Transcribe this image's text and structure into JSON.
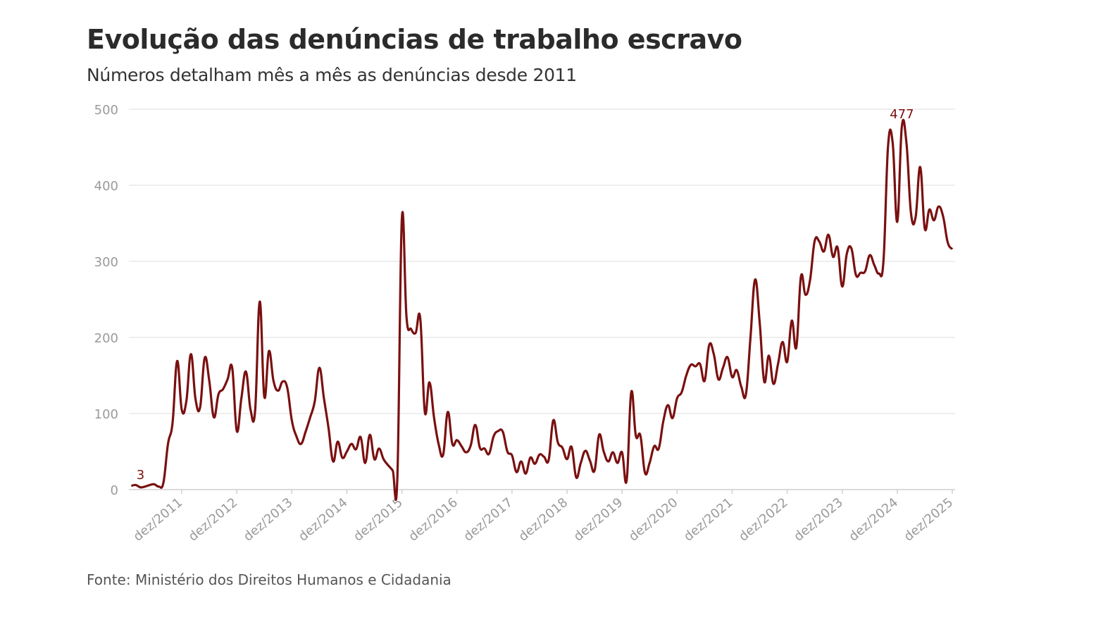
{
  "chart_data": {
    "type": "line",
    "title": "Evolução das denúncias de trabalho escravo",
    "subtitle": "Números detalham mês a mês as denúncias desde 2011",
    "source": "Fonte: Ministério dos Direitos Humanos e Cidadania",
    "xlabel": "",
    "ylabel": "",
    "ylim": [
      0,
      500
    ],
    "yticks": [
      "0",
      "100",
      "200",
      "300",
      "400",
      "500"
    ],
    "xtick_labels": [
      "dez/2011",
      "dez/2012",
      "dez/2013",
      "dez/2014",
      "dez/2015",
      "dez/2016",
      "dez/2017",
      "dez/2018",
      "dez/2019",
      "dez/2020",
      "dez/2021",
      "dez/2022",
      "dez/2023",
      "dez/2024",
      "dez/2025"
    ],
    "grid": true,
    "line_color": "#7a1010",
    "annotations": [
      {
        "x": "mar/2011",
        "label": "3"
      },
      {
        "x": "jan/2025",
        "label": "477"
      }
    ],
    "x": [
      "jan/2011",
      "fev/2011",
      "mar/2011",
      "abr/2011",
      "mai/2011",
      "jun/2011",
      "jul/2011",
      "ago/2011",
      "set/2011",
      "out/2011",
      "nov/2011",
      "dez/2011",
      "jan/2012",
      "fev/2012",
      "mar/2012",
      "abr/2012",
      "mai/2012",
      "jun/2012",
      "jul/2012",
      "ago/2012",
      "set/2012",
      "out/2012",
      "nov/2012",
      "dez/2012",
      "jan/2013",
      "fev/2013",
      "mar/2013",
      "abr/2013",
      "mai/2013",
      "jun/2013",
      "jul/2013",
      "ago/2013",
      "set/2013",
      "out/2013",
      "nov/2013",
      "dez/2013",
      "jan/2014",
      "fev/2014",
      "mar/2014",
      "abr/2014",
      "mai/2014",
      "jun/2014",
      "jul/2014",
      "ago/2014",
      "set/2014",
      "out/2014",
      "nov/2014",
      "dez/2014",
      "jan/2015",
      "fev/2015",
      "mar/2015",
      "abr/2015",
      "mai/2015",
      "jun/2015",
      "jul/2015",
      "ago/2015",
      "set/2015",
      "out/2015",
      "nov/2015",
      "dez/2015",
      "jan/2016",
      "fev/2016",
      "mar/2016",
      "abr/2016",
      "mai/2016",
      "jun/2016",
      "jul/2016",
      "ago/2016",
      "set/2016",
      "out/2016",
      "nov/2016",
      "dez/2016",
      "jan/2017",
      "fev/2017",
      "mar/2017",
      "abr/2017",
      "mai/2017",
      "jun/2017",
      "jul/2017",
      "ago/2017",
      "set/2017",
      "out/2017",
      "nov/2017",
      "dez/2017",
      "jan/2018",
      "fev/2018",
      "mar/2018",
      "abr/2018",
      "mai/2018",
      "jun/2018",
      "jul/2018",
      "ago/2018",
      "set/2018",
      "out/2018",
      "nov/2018",
      "dez/2018",
      "jan/2019",
      "fev/2019",
      "mar/2019",
      "abr/2019",
      "mai/2019",
      "jun/2019",
      "jul/2019",
      "ago/2019",
      "set/2019",
      "out/2019",
      "nov/2019",
      "dez/2019",
      "jan/2020",
      "fev/2020",
      "mar/2020",
      "abr/2020",
      "mai/2020",
      "jun/2020",
      "jul/2020",
      "ago/2020",
      "set/2020",
      "out/2020",
      "nov/2020",
      "dez/2020",
      "jan/2021",
      "fev/2021",
      "mar/2021",
      "abr/2021",
      "mai/2021",
      "jun/2021",
      "jul/2021",
      "ago/2021",
      "set/2021",
      "out/2021",
      "nov/2021",
      "dez/2021",
      "jan/2022",
      "fev/2022",
      "mar/2022",
      "abr/2022",
      "mai/2022",
      "jun/2022",
      "jul/2022",
      "ago/2022",
      "set/2022",
      "out/2022",
      "nov/2022",
      "dez/2022",
      "jan/2023",
      "fev/2023",
      "mar/2023",
      "abr/2023",
      "mai/2023",
      "jun/2023",
      "jul/2023",
      "ago/2023",
      "set/2023",
      "out/2023",
      "nov/2023",
      "dez/2023",
      "jan/2024",
      "fev/2024",
      "mar/2024",
      "abr/2024",
      "mai/2024",
      "jun/2024",
      "jul/2024",
      "ago/2024",
      "set/2024",
      "out/2024",
      "nov/2024",
      "dez/2024",
      "jan/2025",
      "fev/2025",
      "mar/2025",
      "abr/2025",
      "mai/2025",
      "jun/2025",
      "jul/2025",
      "ago/2025",
      "set/2025",
      "out/2025",
      "nov/2025",
      "dez/2025"
    ],
    "values": [
      5,
      6,
      3,
      4,
      6,
      7,
      4,
      9,
      60,
      88,
      169,
      105,
      116,
      178,
      119,
      108,
      173,
      143,
      95,
      125,
      132,
      145,
      160,
      77,
      120,
      155,
      105,
      104,
      247,
      122,
      182,
      143,
      130,
      142,
      134,
      91,
      70,
      60,
      76,
      95,
      116,
      160,
      120,
      81,
      37,
      63,
      42,
      50,
      60,
      53,
      69,
      35,
      72,
      40,
      54,
      40,
      32,
      25,
      14,
      357,
      227,
      211,
      206,
      225,
      102,
      141,
      95,
      60,
      46,
      102,
      60,
      65,
      57,
      49,
      58,
      85,
      55,
      54,
      47,
      70,
      77,
      76,
      50,
      45,
      23,
      37,
      21,
      42,
      34,
      46,
      43,
      39,
      91,
      62,
      55,
      40,
      56,
      16,
      35,
      51,
      38,
      25,
      72,
      50,
      37,
      49,
      35,
      49,
      12,
      128,
      71,
      71,
      22,
      35,
      57,
      54,
      90,
      111,
      94,
      120,
      128,
      150,
      164,
      162,
      165,
      143,
      190,
      178,
      145,
      160,
      174,
      148,
      157,
      135,
      125,
      200,
      276,
      220,
      142,
      176,
      139,
      165,
      194,
      168,
      222,
      187,
      280,
      256,
      276,
      327,
      326,
      313,
      335,
      306,
      318,
      267,
      310,
      317,
      282,
      285,
      287,
      308,
      295,
      284,
      301,
      452,
      456,
      352,
      477,
      456,
      363,
      358,
      424,
      343,
      368,
      354,
      372,
      359,
      325,
      316
    ]
  }
}
